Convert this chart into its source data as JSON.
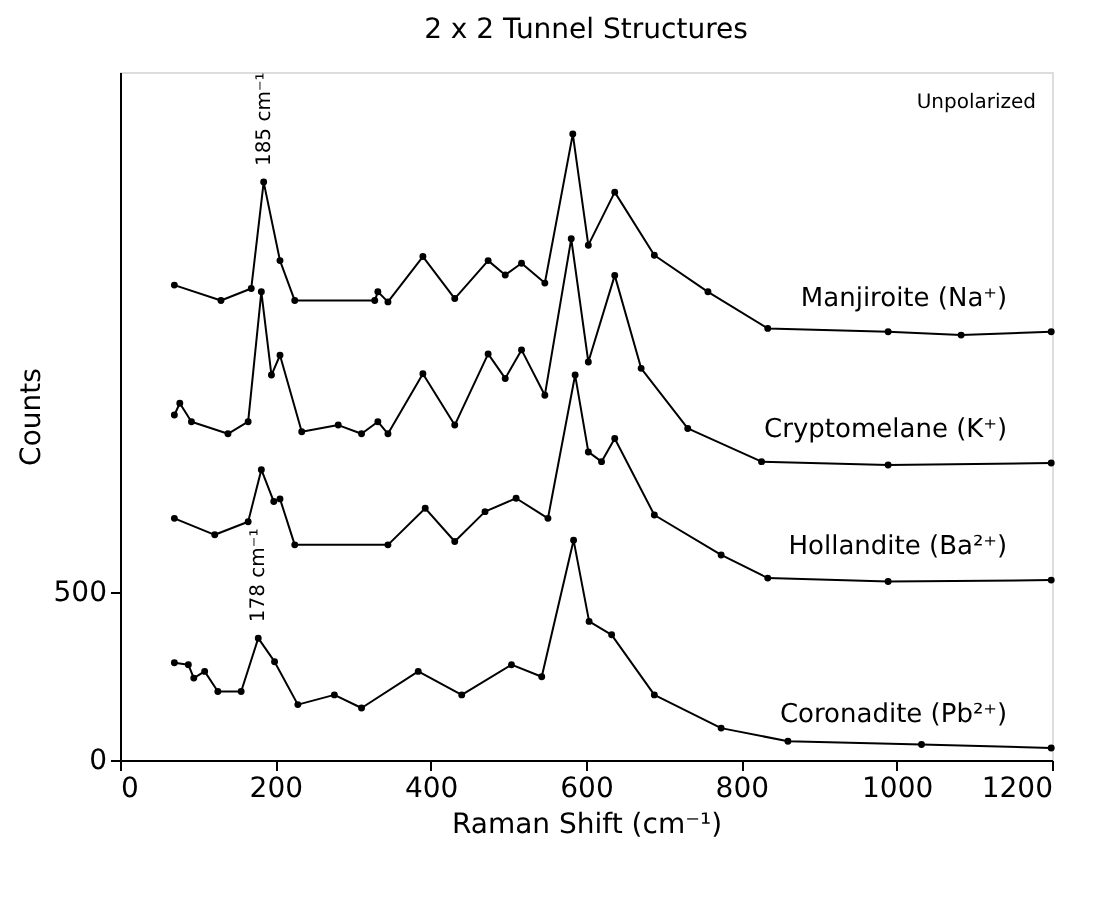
{
  "chart_data": {
    "type": "line",
    "title": "2 x 2 Tunnel Structures",
    "xlabel": "Raman Shift (cm⁻¹)",
    "ylabel": "Counts",
    "xlim": [
      0,
      1200
    ],
    "xticks": [
      0,
      200,
      400,
      600,
      800,
      1000,
      1200
    ],
    "ylim": [
      0,
      2050
    ],
    "yticks": [
      0,
      500
    ],
    "grid": false,
    "legend": false,
    "marker": "circle",
    "line_style": "solid",
    "annotations": [
      {
        "text": "185 cm⁻¹",
        "x": 185,
        "y": 1722
      },
      {
        "text": "178 cm⁻¹",
        "x": 178,
        "y": 363
      },
      "Unpolarized"
    ],
    "series": [
      {
        "name": "Manjiroite (Na⁺)",
        "color": "#000000",
        "x": [
          70,
          130,
          169,
          185,
          206,
          225,
          328,
          332,
          345,
          390,
          431,
          474,
          496,
          517,
          547,
          583,
          603,
          637,
          688,
          757,
          834,
          989,
          1083,
          1199
        ],
        "values": [
          1415,
          1369,
          1405,
          1722,
          1488,
          1369,
          1369,
          1395,
          1365,
          1500,
          1375,
          1488,
          1445,
          1480,
          1421,
          1865,
          1534,
          1692,
          1504,
          1395,
          1286,
          1276,
          1266,
          1276
        ]
      },
      {
        "name": "Cryptomelane (K⁺)",
        "color": "#000000",
        "x": [
          70,
          77,
          92,
          139,
          165,
          182,
          195,
          206,
          234,
          281,
          311,
          332,
          345,
          390,
          431,
          474,
          496,
          517,
          547,
          581,
          603,
          637,
          671,
          731,
          826,
          989,
          1199
        ],
        "values": [
          1028,
          1063,
          1008,
          972,
          1008,
          1395,
          1147,
          1206,
          978,
          998,
          972,
          1008,
          972,
          1151,
          998,
          1210,
          1137,
          1222,
          1087,
          1553,
          1186,
          1444,
          1167,
          988,
          889,
          879,
          885
        ]
      },
      {
        "name": "Hollandite (Ba²⁺)",
        "color": "#000000",
        "x": [
          70,
          122,
          165,
          182,
          198,
          206,
          225,
          345,
          393,
          431,
          470,
          510,
          551,
          586,
          603,
          620,
          637,
          688,
          774,
          834,
          989,
          1199
        ],
        "values": [
          720,
          671,
          710,
          865,
          770,
          778,
          641,
          641,
          750,
          651,
          740,
          780,
          720,
          1147,
          918,
          889,
          958,
          730,
          611,
          542,
          532,
          536
        ]
      },
      {
        "name": "Coronadite (Pb²⁺)",
        "color": "#000000",
        "x": [
          70,
          88,
          95,
          109,
          126,
          156,
          178,
          199,
          229,
          276,
          311,
          384,
          440,
          504,
          543,
          584,
          604,
          633,
          688,
          774,
          860,
          1032,
          1199
        ],
        "values": [
          290,
          284,
          244,
          264,
          204,
          204,
          363,
          293,
          165,
          194,
          155,
          264,
          194,
          284,
          248,
          655,
          413,
          373,
          194,
          95,
          56,
          46,
          36
        ]
      }
    ]
  }
}
